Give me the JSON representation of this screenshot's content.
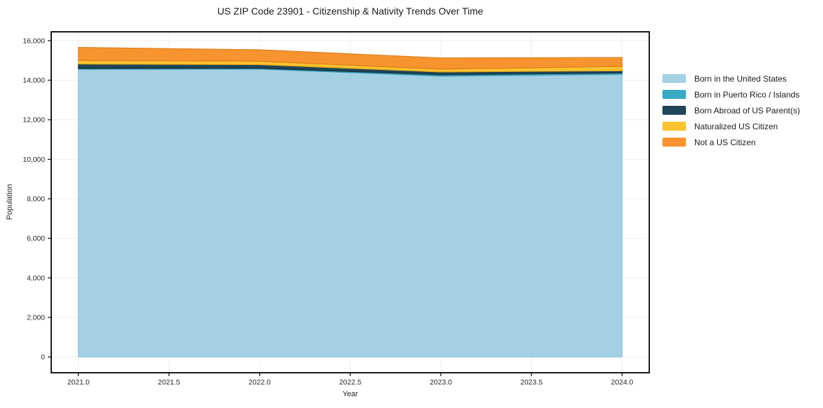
{
  "chart_data": {
    "type": "area",
    "stacked": true,
    "title": "US ZIP Code 23901 - Citizenship & Nativity Trends Over Time",
    "xlabel": "Year",
    "ylabel": "Population",
    "x": [
      2021,
      2022,
      2023,
      2024
    ],
    "series": [
      {
        "name": "Born in the United States",
        "color": "#a4d0e4",
        "edge": "#8cc1d8",
        "values": [
          14560,
          14570,
          14210,
          14300
        ]
      },
      {
        "name": "Born in Puerto Rico / Islands",
        "color": "#3aa9c6",
        "edge": "#2f93ae",
        "values": [
          40,
          40,
          70,
          70
        ]
      },
      {
        "name": "Born Abroad of US Parent(s)",
        "color": "#1f4557",
        "edge": "#162f3c",
        "values": [
          220,
          180,
          140,
          110
        ]
      },
      {
        "name": "Naturalized US Citizen",
        "color": "#fcc331",
        "edge": "#e5a81c",
        "values": [
          180,
          170,
          140,
          220
        ]
      },
      {
        "name": "Not a US Citizen",
        "color": "#f79430",
        "edge": "#e07e17",
        "values": [
          660,
          580,
          570,
          450
        ]
      }
    ],
    "xlim": [
      2020.85,
      2024.15
    ],
    "ylim": [
      -800,
      16450
    ],
    "xticks": {
      "values": [
        2021.0,
        2021.5,
        2022.0,
        2022.5,
        2023.0,
        2023.5,
        2024.0
      ],
      "labels": [
        "2021.0",
        "2021.5",
        "2022.0",
        "2022.5",
        "2023.0",
        "2023.5",
        "2024.0"
      ]
    },
    "yticks": {
      "values": [
        0,
        2000,
        4000,
        6000,
        8000,
        10000,
        12000,
        14000,
        16000
      ],
      "labels": [
        "0",
        "2,000",
        "4,000",
        "6,000",
        "8,000",
        "10,000",
        "12,000",
        "14,000",
        "16,000"
      ]
    },
    "grid": true,
    "legend_position": "right",
    "colors": {
      "axis": "#1a1a1a",
      "grid": "#ededed",
      "text": "#262626",
      "background": "#ffffff"
    }
  }
}
